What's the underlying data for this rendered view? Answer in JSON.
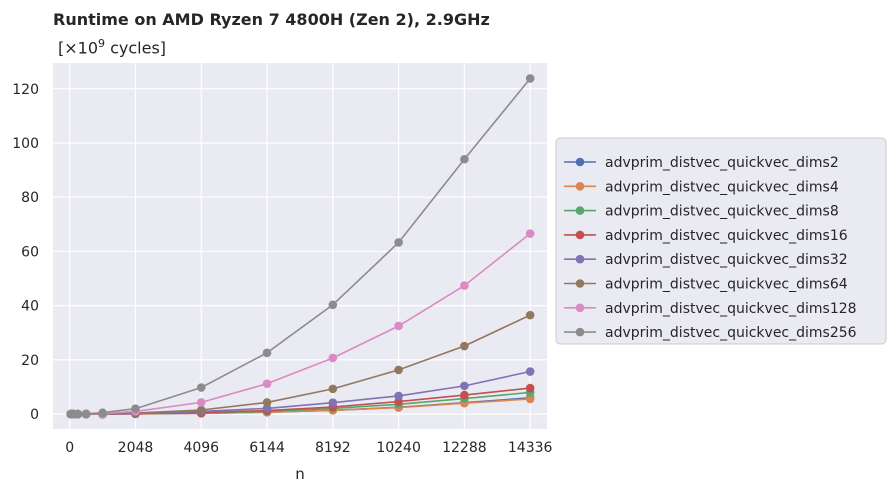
{
  "chart_data": {
    "type": "line",
    "title": "Runtime on AMD Ryzen 7 4800H (Zen 2), 2.9GHz",
    "subtitle_prefix": "[×10",
    "subtitle_exponent": "9",
    "subtitle_suffix": " cycles]",
    "xlabel": "n",
    "ylabel": "",
    "xlim": [
      -520,
      14860
    ],
    "ylim": [
      -5.5,
      129.5
    ],
    "xticks": [
      0,
      2048,
      4096,
      6144,
      8192,
      10240,
      12288,
      14336
    ],
    "yticks": [
      0,
      20,
      40,
      60,
      80,
      100,
      120
    ],
    "grid": true,
    "legend_position": "right",
    "x": [
      32,
      64,
      128,
      256,
      512,
      1024,
      2048,
      4096,
      6144,
      8192,
      10240,
      12288,
      14336
    ],
    "series": [
      {
        "name": "advprim_distvec_quickvec_dims2",
        "color": "#4c72b0",
        "values": [
          0,
          0,
          0,
          0,
          0,
          0,
          0.1,
          0.3,
          0.7,
          1.4,
          2.5,
          4.2,
          6.0
        ]
      },
      {
        "name": "advprim_distvec_quickvec_dims4",
        "color": "#dd8452",
        "values": [
          0,
          0,
          0,
          0,
          0,
          0,
          0.1,
          0.3,
          0.7,
          1.4,
          2.4,
          4.0,
          5.6
        ]
      },
      {
        "name": "advprim_distvec_quickvec_dims8",
        "color": "#55a868",
        "values": [
          0,
          0,
          0,
          0,
          0,
          0,
          0.1,
          0.4,
          1.0,
          2.1,
          3.6,
          5.7,
          8.0
        ]
      },
      {
        "name": "advprim_distvec_quickvec_dims16",
        "color": "#c44e52",
        "values": [
          0,
          0,
          0,
          0,
          0,
          0,
          0.1,
          0.5,
          1.3,
          2.6,
          4.6,
          7.0,
          9.6
        ]
      },
      {
        "name": "advprim_distvec_quickvec_dims32",
        "color": "#8172b3",
        "values": [
          0,
          0,
          0,
          0,
          0,
          0,
          0.2,
          1.0,
          2.1,
          4.2,
          6.7,
          10.4,
          15.7
        ]
      },
      {
        "name": "advprim_distvec_quickvec_dims64",
        "color": "#937860",
        "values": [
          0,
          0,
          0,
          0,
          0,
          0.1,
          0.4,
          1.5,
          4.3,
          9.3,
          16.3,
          25.1,
          36.5
        ]
      },
      {
        "name": "advprim_distvec_quickvec_dims128",
        "color": "#da8bc3",
        "values": [
          0,
          0,
          0,
          0,
          0.1,
          0.2,
          1.0,
          4.3,
          11.2,
          20.7,
          32.5,
          47.4,
          66.6
        ]
      },
      {
        "name": "advprim_distvec_quickvec_dims256",
        "color": "#8c8c8c",
        "values": [
          0,
          0,
          0,
          0,
          0.1,
          0.5,
          2.0,
          9.8,
          22.6,
          40.3,
          63.3,
          94.0,
          123.8
        ]
      }
    ]
  }
}
